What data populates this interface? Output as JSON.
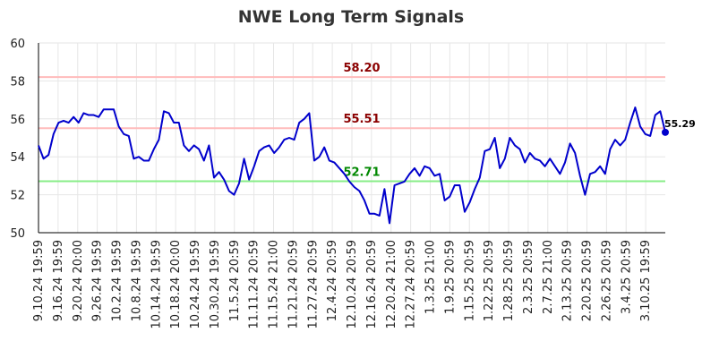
{
  "chart_data": {
    "type": "line",
    "title": "NWE Long Term Signals",
    "xlabel": "",
    "ylabel": "",
    "ylim": [
      50,
      60
    ],
    "yticks": [
      50,
      52,
      54,
      56,
      58,
      60
    ],
    "grid": true,
    "x_tick_labels": [
      "9.10.24 19:59",
      "9.16.24 19:59",
      "9.20.24 20:00",
      "9.26.24 19:59",
      "10.2.24 19:59",
      "10.8.24 19:59",
      "10.14.24 19:59",
      "10.18.24 20:00",
      "10.24.24 19:59",
      "10.30.24 19:59",
      "11.5.24 20:59",
      "11.11.24 20:59",
      "11.15.24 21:00",
      "11.21.24 20:59",
      "11.27.24 20:59",
      "12.4.24 20:59",
      "12.10.24 20:59",
      "12.16.24 20:59",
      "12.20.24 21:00",
      "12.27.24 20:59",
      "1.3.25 21:00",
      "1.9.25 20:59",
      "1.15.25 20:59",
      "1.22.25 20:59",
      "1.28.25 20:59",
      "2.3.25 20:59",
      "2.7.25 21:00",
      "2.13.25 20:59",
      "2.20.25 20:59",
      "2.26.25 20:59",
      "3.4.25 20:59",
      "3.10.25 19:59"
    ],
    "series": [
      {
        "color": "#0000cc",
        "values": [
          54.6,
          53.9,
          54.1,
          55.2,
          55.8,
          55.9,
          55.8,
          56.1,
          55.8,
          56.3,
          56.2,
          56.2,
          56.1,
          56.5,
          56.5,
          56.5,
          55.6,
          55.2,
          55.1,
          53.9,
          54.0,
          53.8,
          53.8,
          54.4,
          54.9,
          56.4,
          56.3,
          55.8,
          55.8,
          54.6,
          54.3,
          54.6,
          54.4,
          53.8,
          54.6,
          52.9,
          53.2,
          52.8,
          52.2,
          52.0,
          52.6,
          53.9,
          52.8,
          53.5,
          54.3,
          54.5,
          54.6,
          54.2,
          54.5,
          54.9,
          55.0,
          54.9,
          55.8,
          56.0,
          56.3,
          53.8,
          54.0,
          54.5,
          53.8,
          53.7,
          53.4,
          53.1,
          52.7,
          52.4,
          52.2,
          51.7,
          51.0,
          51.0,
          50.9,
          52.3,
          50.5,
          52.5,
          52.6,
          52.7,
          53.1,
          53.4,
          53.0,
          53.5,
          53.4,
          53.0,
          53.1,
          51.7,
          51.9,
          52.5,
          52.5,
          51.1,
          51.6,
          52.3,
          52.9,
          54.3,
          54.4,
          55.0,
          53.4,
          53.9,
          55.0,
          54.6,
          54.4,
          53.7,
          54.2,
          53.9,
          53.8,
          53.5,
          53.9,
          53.5,
          53.1,
          53.7,
          54.7,
          54.2,
          53.0,
          52.0,
          53.1,
          53.2,
          53.5,
          53.1,
          54.4,
          54.9,
          54.6,
          54.9,
          55.8,
          56.6,
          55.6,
          55.2,
          55.1,
          56.2,
          56.4,
          55.29
        ]
      }
    ],
    "reference_lines": [
      {
        "value": 58.2,
        "label": "58.20",
        "line_color": "#ffbbbb",
        "label_color": "#8b0000"
      },
      {
        "value": 55.51,
        "label": "55.51",
        "line_color": "#ffbbbb",
        "label_color": "#8b0000"
      },
      {
        "value": 52.71,
        "label": "52.71",
        "line_color": "#88ee88",
        "label_color": "#008800"
      }
    ],
    "last_value_label": "55.29"
  }
}
